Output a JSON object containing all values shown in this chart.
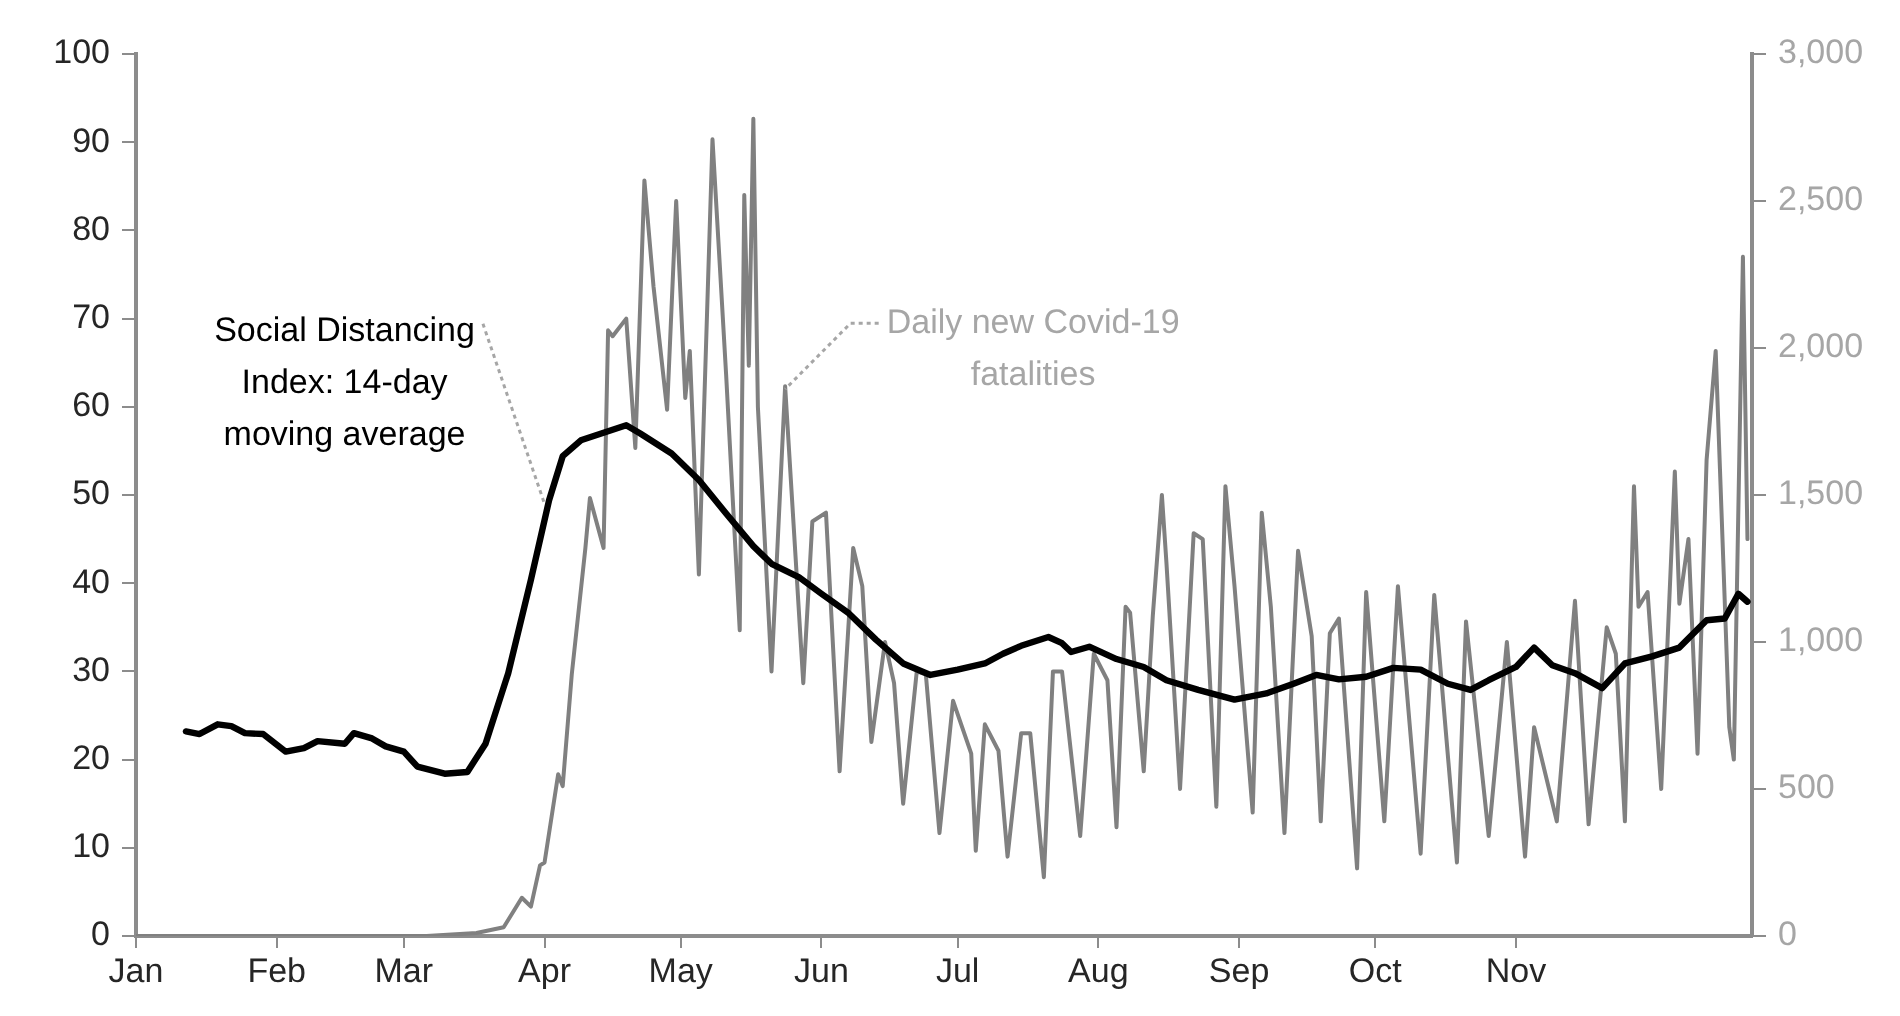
{
  "chart_data": {
    "type": "line",
    "xlim": [
      "--01-01",
      "--12-23"
    ],
    "xticks": [
      {
        "value": "--01-01",
        "label": "Jan"
      },
      {
        "value": "--02-01",
        "label": "Feb"
      },
      {
        "value": "--03-01",
        "label": "Mar"
      },
      {
        "value": "--04-01",
        "label": "Apr"
      },
      {
        "value": "--05-01",
        "label": "May"
      },
      {
        "value": "--06-01",
        "label": "Jun"
      },
      {
        "value": "--07-01",
        "label": "Jul"
      },
      {
        "value": "--08-01",
        "label": "Aug"
      },
      {
        "value": "--09-01",
        "label": "Sep"
      },
      {
        "value": "--10-01",
        "label": "Oct"
      },
      {
        "value": "--11-01",
        "label": "Nov"
      }
    ],
    "ylim": [
      0,
      100
    ],
    "yticks": [
      0,
      10,
      20,
      30,
      40,
      50,
      60,
      70,
      80,
      90,
      100
    ],
    "y2lim": [
      0,
      3000
    ],
    "y2ticks": [
      0,
      500,
      {
        "value": 1000,
        "label": "1,000"
      },
      {
        "value": 1500,
        "label": "1,500"
      },
      {
        "value": 2000,
        "label": "2,000"
      },
      {
        "value": 2500,
        "label": "2,500"
      },
      {
        "value": 3000,
        "label": "3,000"
      }
    ],
    "grid": false,
    "legend": false,
    "marker": "none",
    "annotations": [
      {
        "text": "Social Distancing Index: 14-day moving average",
        "x": "--04-01",
        "y": 49
      },
      {
        "text": "Daily new Covid-19 fatalities",
        "x": "--05-24",
        "y": 62
      }
    ],
    "series": [
      {
        "color": "#000000",
        "x": [
          "--01-12",
          "--01-15",
          "--01-19",
          "--01-22",
          "--01-25",
          "--01-29",
          "--02-03",
          "--02-07",
          "--02-10",
          "--02-16",
          "--02-18",
          "--02-22",
          "--02-25",
          "--03-01",
          "--03-04",
          "--03-10",
          "--03-15",
          "--03-19",
          "--03-24",
          "--03-29",
          "--04-02",
          "--04-05",
          "--04-09",
          "--04-16",
          "--04-19",
          "--04-22",
          "--04-29",
          "--05-05",
          "--05-11",
          "--05-17",
          "--05-21",
          "--05-27",
          "--06-01",
          "--06-07",
          "--06-13",
          "--06-19",
          "--06-25",
          "--07-01",
          "--07-07",
          "--07-11",
          "--07-15",
          "--07-21",
          "--07-24",
          "--07-26",
          "--07-30",
          "--08-05",
          "--08-11",
          "--08-16",
          "--08-23",
          "--08-31",
          "--09-07",
          "--09-13",
          "--09-18",
          "--09-23",
          "--09-29",
          "--10-05",
          "--10-11",
          "--10-17",
          "--10-22",
          "--10-26",
          "--11-01",
          "--11-05",
          "--11-09",
          "--11-14",
          "--11-20",
          "--11-25",
          "--12-01",
          "--12-07",
          "--12-13",
          "--12-17",
          "--12-20",
          "--12-22"
        ],
        "values": [
          23.2,
          22.9,
          24.0,
          23.8,
          23.0,
          22.9,
          20.9,
          21.3,
          22.1,
          21.8,
          23.0,
          22.4,
          21.5,
          20.9,
          19.2,
          18.4,
          18.6,
          21.8,
          29.8,
          40.4,
          49.4,
          54.4,
          56.2,
          57.4,
          57.9,
          57.0,
          54.7,
          51.7,
          47.9,
          44.2,
          42.2,
          40.7,
          38.8,
          36.6,
          33.6,
          30.9,
          29.6,
          30.2,
          30.9,
          32.0,
          32.9,
          33.9,
          33.2,
          32.2,
          32.8,
          31.4,
          30.5,
          29.0,
          27.9,
          26.8,
          27.5,
          28.6,
          29.6,
          29.1,
          29.4,
          30.4,
          30.2,
          28.6,
          27.9,
          29.0,
          30.5,
          32.7,
          30.7,
          29.8,
          28.1,
          30.9,
          31.7,
          32.7,
          35.8,
          36.0,
          38.8,
          37.9
        ]
      },
      {
        "color": "#808080",
        "axis": "y2",
        "x": [
          "--01-01",
          "--03-06",
          "--03-17",
          "--03-23",
          "--03-27",
          "--03-29",
          "--03-31",
          "--04-01",
          "--04-04",
          "--04-05",
          "--04-07",
          "--04-10",
          "--04-11",
          "--04-14",
          "--04-15",
          "--04-16",
          "--04-19",
          "--04-21",
          "--04-23",
          "--04-25",
          "--04-28",
          "--04-30",
          "--05-02",
          "--05-03",
          "--05-05",
          "--05-08",
          "--05-11",
          "--05-14",
          "--05-15",
          "--05-16",
          "--05-17",
          "--05-18",
          "--05-21",
          "--05-24",
          "--05-28",
          "--05-30",
          "--06-02",
          "--06-05",
          "--06-08",
          "--06-10",
          "--06-12",
          "--06-15",
          "--06-17",
          "--06-19",
          "--06-22",
          "--06-24",
          "--06-27",
          "--06-30",
          "--07-04",
          "--07-05",
          "--07-07",
          "--07-10",
          "--07-12",
          "--07-15",
          "--07-17",
          "--07-20",
          "--07-22",
          "--07-24",
          "--07-28",
          "--07-31",
          "--08-03",
          "--08-05",
          "--08-07",
          "--08-08",
          "--08-11",
          "--08-13",
          "--08-15",
          "--08-16",
          "--08-19",
          "--08-22",
          "--08-24",
          "--08-27",
          "--08-29",
          "--08-31",
          "--09-04",
          "--09-06",
          "--09-08",
          "--09-11",
          "--09-14",
          "--09-17",
          "--09-19",
          "--09-21",
          "--09-23",
          "--09-27",
          "--09-29",
          "--10-03",
          "--10-06",
          "--10-11",
          "--10-14",
          "--10-19",
          "--10-21",
          "--10-26",
          "--10-30",
          "--11-03",
          "--11-05",
          "--11-10",
          "--11-14",
          "--11-17",
          "--11-21",
          "--11-23",
          "--11-25",
          "--11-27",
          "--11-28",
          "--11-30",
          "--12-03",
          "--12-06",
          "--12-07",
          "--12-09",
          "--12-11",
          "--12-13",
          "--12-15",
          "--12-18",
          "--12-19",
          "--12-21",
          "--12-22"
        ],
        "values": [
          0,
          0,
          10,
          30,
          130,
          100,
          240,
          250,
          550,
          510,
          890,
          1320,
          1490,
          1320,
          2060,
          2040,
          2100,
          1660,
          2570,
          2210,
          1790,
          2500,
          1830,
          1990,
          1230,
          2710,
          1910,
          1040,
          2520,
          1940,
          2780,
          1800,
          900,
          1870,
          860,
          1410,
          1440,
          560,
          1320,
          1190,
          660,
          1000,
          860,
          450,
          900,
          890,
          350,
          800,
          620,
          290,
          720,
          630,
          270,
          690,
          690,
          200,
          900,
          900,
          340,
          960,
          870,
          370,
          1120,
          1100,
          560,
          1090,
          1500,
          1270,
          500,
          1370,
          1350,
          440,
          1530,
          1190,
          420,
          1440,
          1120,
          350,
          1310,
          1020,
          390,
          1030,
          1080,
          230,
          1170,
          390,
          1190,
          280,
          1160,
          250,
          1070,
          340,
          1000,
          270,
          710,
          390,
          1140,
          380,
          1050,
          960,
          390,
          1530,
          1120,
          1170,
          500,
          1580,
          1130,
          1350,
          620,
          1620,
          1990,
          710,
          600,
          2310,
          1350
        ]
      }
    ]
  }
}
